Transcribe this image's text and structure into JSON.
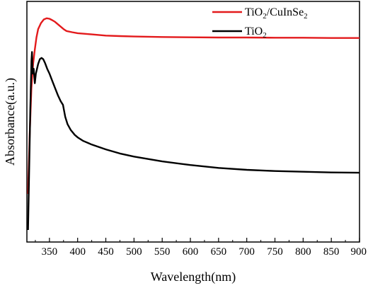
{
  "chart_data": {
    "type": "line",
    "title": "",
    "xlabel": "Wavelength(nm)",
    "ylabel": "Absorbance(a.u.)",
    "xlim": [
      310,
      900
    ],
    "x_ticks": [
      350,
      400,
      450,
      500,
      550,
      600,
      650,
      700,
      750,
      800,
      850,
      900
    ],
    "x_tick_labels": [
      "350",
      "400",
      "450",
      "500",
      "550",
      "600",
      "650",
      "700",
      "750",
      "800",
      "850",
      "900"
    ],
    "y_ticks_shown": false,
    "grid": false,
    "legend_position": "top-right",
    "series": [
      {
        "name_main": "TiO",
        "name_sub1": "2",
        "name_mid": "/CuInSe",
        "name_sub2": "2",
        "color": "#e31a1c",
        "points": [
          [
            312,
            0.2
          ],
          [
            315,
            0.45
          ],
          [
            318,
            0.64
          ],
          [
            321,
            0.74
          ],
          [
            324,
            0.8
          ],
          [
            327,
            0.85
          ],
          [
            330,
            0.885
          ],
          [
            335,
            0.91
          ],
          [
            340,
            0.925
          ],
          [
            345,
            0.93
          ],
          [
            350,
            0.928
          ],
          [
            355,
            0.922
          ],
          [
            360,
            0.915
          ],
          [
            365,
            0.905
          ],
          [
            370,
            0.895
          ],
          [
            375,
            0.885
          ],
          [
            380,
            0.877
          ],
          [
            390,
            0.872
          ],
          [
            400,
            0.868
          ],
          [
            425,
            0.863
          ],
          [
            450,
            0.858
          ],
          [
            475,
            0.856
          ],
          [
            500,
            0.854
          ],
          [
            550,
            0.852
          ],
          [
            600,
            0.851
          ],
          [
            650,
            0.85
          ],
          [
            700,
            0.85
          ],
          [
            750,
            0.849
          ],
          [
            800,
            0.849
          ],
          [
            850,
            0.848
          ],
          [
            900,
            0.848
          ]
        ]
      },
      {
        "name_main": "TiO",
        "name_sub1": "2",
        "name_mid": "",
        "name_sub2": "",
        "color": "#000000",
        "points": [
          [
            312,
            0.05
          ],
          [
            314,
            0.3
          ],
          [
            316,
            0.55
          ],
          [
            318,
            0.75
          ],
          [
            319,
            0.79
          ],
          [
            320,
            0.7
          ],
          [
            322,
            0.72
          ],
          [
            324,
            0.66
          ],
          [
            326,
            0.7
          ],
          [
            328,
            0.72
          ],
          [
            330,
            0.74
          ],
          [
            333,
            0.76
          ],
          [
            336,
            0.765
          ],
          [
            339,
            0.76
          ],
          [
            342,
            0.745
          ],
          [
            346,
            0.72
          ],
          [
            350,
            0.7
          ],
          [
            355,
            0.67
          ],
          [
            360,
            0.64
          ],
          [
            365,
            0.61
          ],
          [
            370,
            0.585
          ],
          [
            374,
            0.57
          ],
          [
            376,
            0.545
          ],
          [
            378,
            0.52
          ],
          [
            382,
            0.49
          ],
          [
            388,
            0.465
          ],
          [
            395,
            0.445
          ],
          [
            400,
            0.435
          ],
          [
            410,
            0.42
          ],
          [
            425,
            0.405
          ],
          [
            450,
            0.385
          ],
          [
            475,
            0.368
          ],
          [
            500,
            0.355
          ],
          [
            550,
            0.335
          ],
          [
            600,
            0.32
          ],
          [
            650,
            0.308
          ],
          [
            700,
            0.3
          ],
          [
            750,
            0.295
          ],
          [
            800,
            0.292
          ],
          [
            850,
            0.289
          ],
          [
            900,
            0.288
          ]
        ]
      }
    ]
  }
}
